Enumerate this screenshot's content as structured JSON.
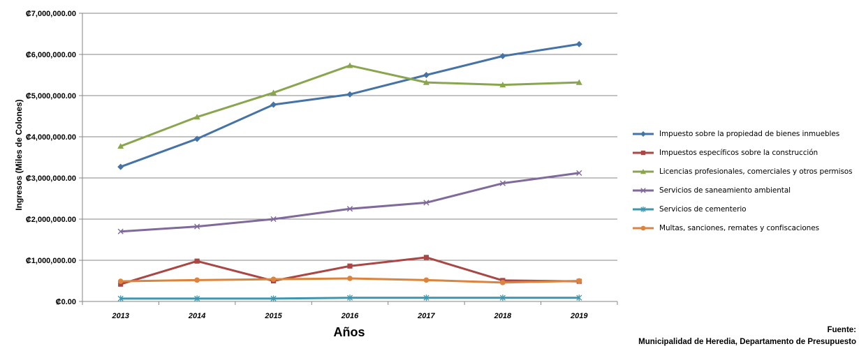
{
  "chart_data": {
    "type": "line",
    "xlabel": "Años",
    "ylabel": "Ingresos (Miles de Colones)",
    "x": [
      "2013",
      "2014",
      "2015",
      "2016",
      "2017",
      "2018",
      "2019"
    ],
    "ylim": [
      0,
      7000000
    ],
    "yticks": [
      {
        "value": 0,
        "label": "₡0.00"
      },
      {
        "value": 1000000,
        "label": "₡1,000,000.00"
      },
      {
        "value": 2000000,
        "label": "₡2,000,000.00"
      },
      {
        "value": 3000000,
        "label": "₡3,000,000.00"
      },
      {
        "value": 4000000,
        "label": "₡4,000,000.00"
      },
      {
        "value": 5000000,
        "label": "₡5,000,000.00"
      },
      {
        "value": 6000000,
        "label": "₡6,000,000.00"
      },
      {
        "value": 7000000,
        "label": "₡7,000,000.00"
      }
    ],
    "grid": true,
    "legend_position": "right",
    "series": [
      {
        "name": "Impuesto sobre la propiedad de bienes inmuebles",
        "color": "#4572A7",
        "marker": "diamond",
        "values": [
          3270000,
          3950000,
          4780000,
          5030000,
          5500000,
          5960000,
          6250000
        ]
      },
      {
        "name": "Impuestos específicos sobre la construcción",
        "color": "#AA4643",
        "marker": "square",
        "values": [
          420000,
          980000,
          500000,
          860000,
          1070000,
          510000,
          490000
        ]
      },
      {
        "name": "Licencias profesionales, comerciales y otros permisos",
        "color": "#89A54E",
        "marker": "triangle",
        "values": [
          3770000,
          4480000,
          5070000,
          5730000,
          5320000,
          5260000,
          5320000
        ]
      },
      {
        "name": "Servicios de saneamiento ambiental",
        "color": "#80699B",
        "marker": "x",
        "values": [
          1700000,
          1820000,
          2000000,
          2250000,
          2400000,
          2870000,
          3120000
        ]
      },
      {
        "name": "Servicios de cementerio",
        "color": "#3D96AE",
        "marker": "star",
        "values": [
          70000,
          70000,
          70000,
          90000,
          90000,
          90000,
          90000
        ]
      },
      {
        "name": "Multas, sanciones, remates y confiscaciones",
        "color": "#DB843D",
        "marker": "circle",
        "values": [
          490000,
          520000,
          540000,
          560000,
          520000,
          460000,
          500000
        ]
      }
    ]
  },
  "source": {
    "line1": "Fuente:",
    "line2": "Municipalidad de Heredia, Departamento de Presupuesto"
  }
}
